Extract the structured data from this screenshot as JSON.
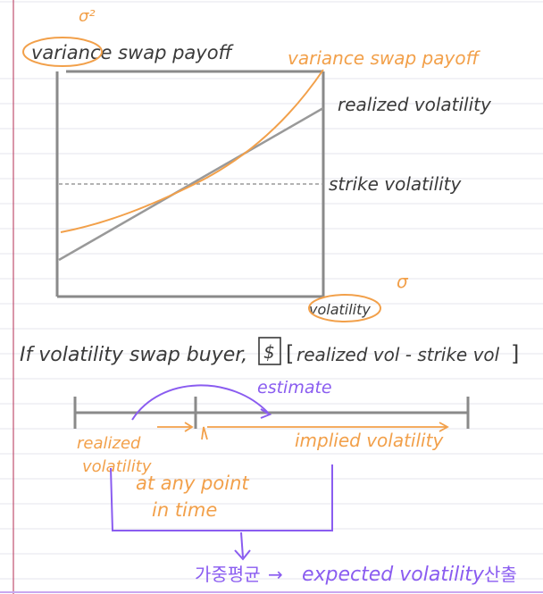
{
  "colors": {
    "ink": "#3a3a3a",
    "orange": "#f2a04a",
    "purple": "#8a5cf0",
    "margin_line": "#c05070",
    "ruled_line": "#e6e6ee",
    "axis": "#8a8a8a"
  },
  "top_chart": {
    "title": "variance swap payoff",
    "title_circled_word": "variance",
    "circle_note": "σ²",
    "curve_label": "variance swap payoff",
    "line_label": "realized volatility",
    "strike_label": "strike volatility",
    "x_axis_label": "volatility",
    "x_axis_note": "σ"
  },
  "formula": {
    "prefix": "If volatility swap buyer,",
    "boxed": "$",
    "bracket": "realized vol - strike vol"
  },
  "timeline": {
    "arc_label": "estimate",
    "past_label_line1": "realized",
    "past_label_line2": "volatility",
    "now_label_line1": "at any point",
    "now_label_line2": "in time",
    "future_label": "implied volatility"
  },
  "conclusion": {
    "korean_text": "가중평균",
    "arrow": "→",
    "text": "expected volatility",
    "korean_suffix": "산출"
  }
}
